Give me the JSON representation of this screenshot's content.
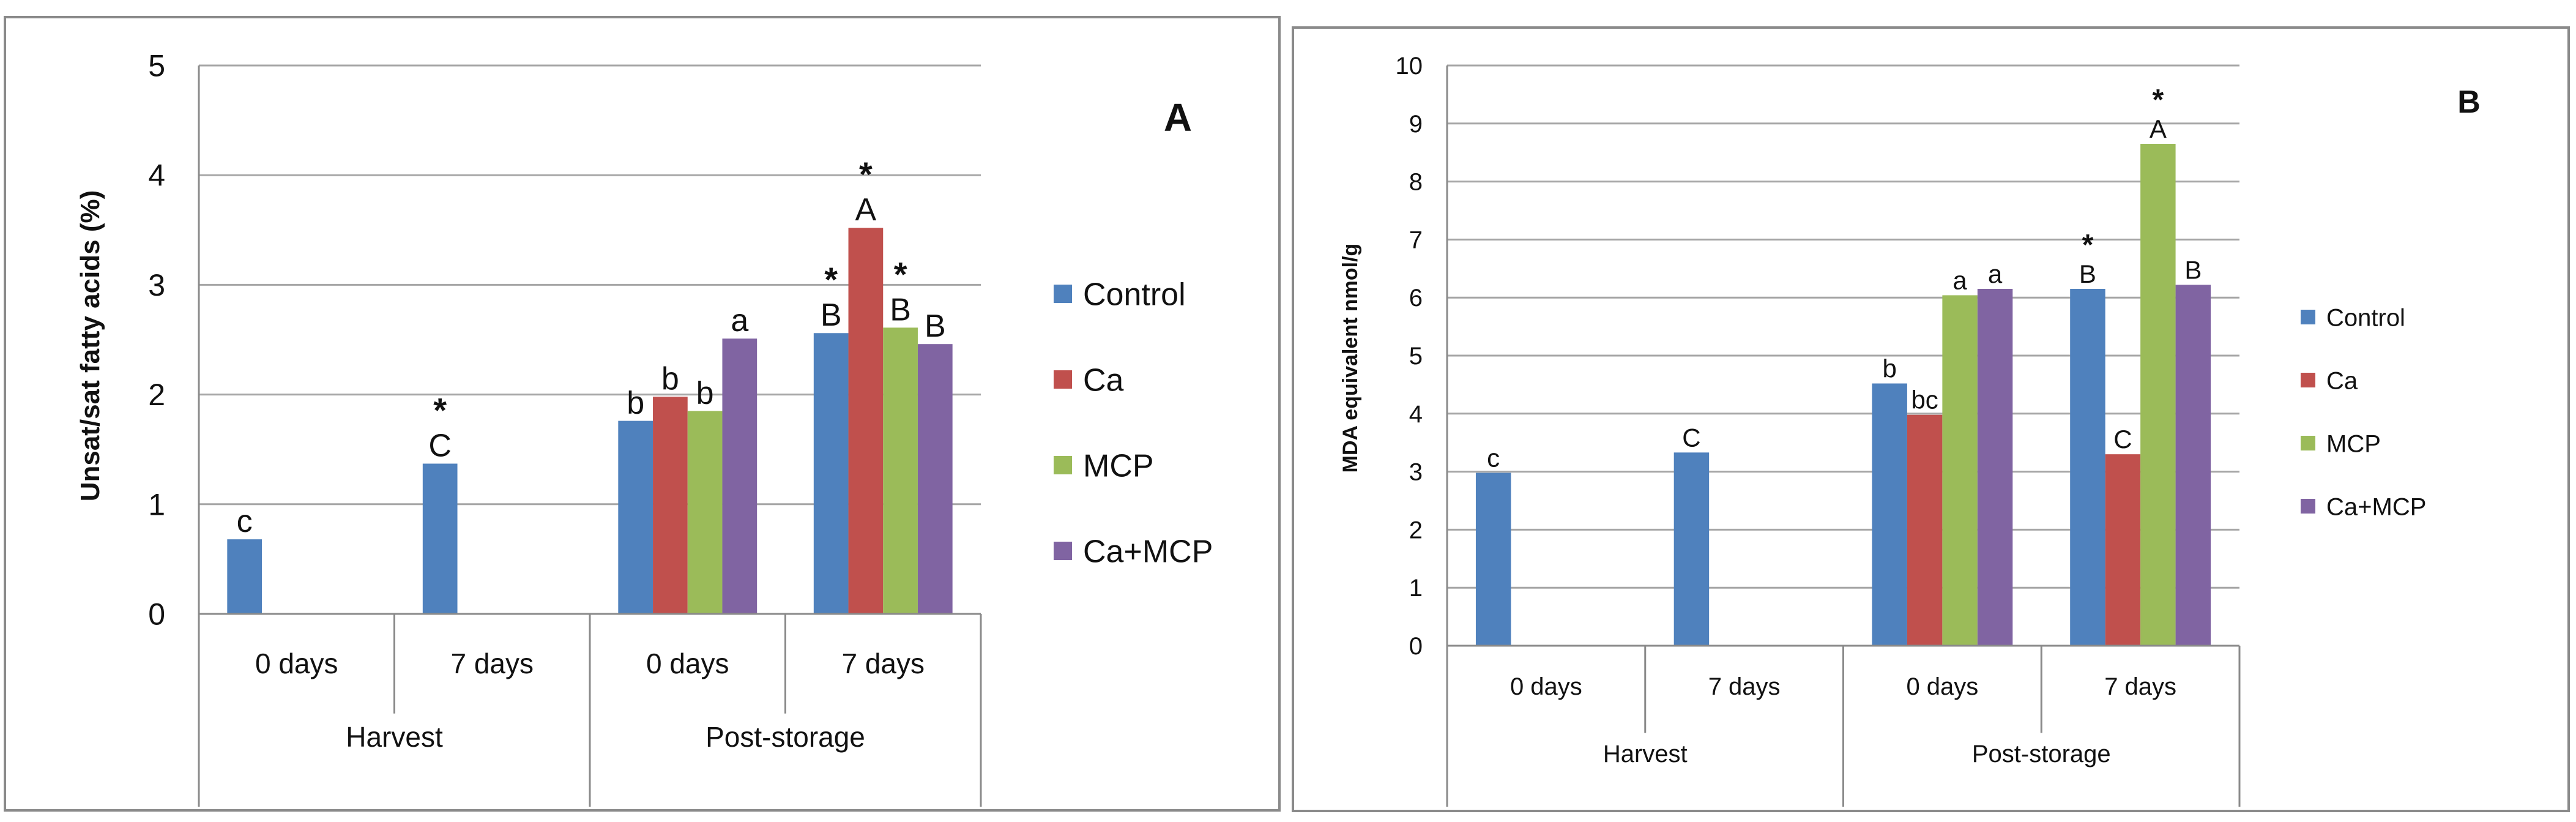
{
  "chart_data": [
    {
      "panel": "A",
      "type": "bar",
      "title": "",
      "panel_label": "A",
      "ylabel": "Unsat/sat fatty acids (%)",
      "xlabel": "",
      "ylim": [
        0,
        5
      ],
      "yticks": [
        0,
        1,
        2,
        3,
        4,
        5
      ],
      "grid": true,
      "legend_position": "right",
      "groups": [
        {
          "label": "Harvest",
          "categories": [
            "0 days",
            "7 days"
          ]
        },
        {
          "label": "Post-storage",
          "categories": [
            "0 days",
            "7 days"
          ]
        }
      ],
      "categories": [
        "0 days",
        "7 days",
        "0 days",
        "7 days"
      ],
      "series": [
        {
          "name": "Control",
          "color": "#4f81bd",
          "values": [
            0.68,
            1.37,
            1.76,
            2.56
          ],
          "labels": [
            "c",
            "C",
            "b",
            "B"
          ],
          "stars": [
            false,
            true,
            false,
            true
          ]
        },
        {
          "name": "Ca",
          "color": "#c0504d",
          "values": [
            null,
            null,
            1.98,
            3.52
          ],
          "labels": [
            "",
            "",
            "b",
            "A"
          ],
          "stars": [
            false,
            false,
            false,
            true
          ]
        },
        {
          "name": "MCP",
          "color": "#9bbb59",
          "values": [
            null,
            null,
            1.85,
            2.61
          ],
          "labels": [
            "",
            "",
            "b",
            "B"
          ],
          "stars": [
            false,
            false,
            false,
            true
          ]
        },
        {
          "name": "Ca+MCP",
          "color": "#8064a2",
          "values": [
            null,
            null,
            2.51,
            2.46
          ],
          "labels": [
            "",
            "",
            "a",
            "B"
          ],
          "stars": [
            false,
            false,
            false,
            false
          ]
        }
      ],
      "star_symbol": "*"
    },
    {
      "panel": "B",
      "type": "bar",
      "title": "",
      "panel_label": "B",
      "ylabel": "MDA equivalent nmol/g",
      "xlabel": "",
      "ylim": [
        0,
        10
      ],
      "yticks": [
        0,
        1,
        2,
        3,
        4,
        5,
        6,
        7,
        8,
        9,
        10
      ],
      "grid": true,
      "legend_position": "right",
      "groups": [
        {
          "label": "Harvest",
          "categories": [
            "0 days",
            "7 days"
          ]
        },
        {
          "label": "Post-storage",
          "categories": [
            "0 days",
            "7 days"
          ]
        }
      ],
      "categories": [
        "0 days",
        "7 days",
        "0 days",
        "7 days"
      ],
      "series": [
        {
          "name": "Control",
          "color": "#4f81bd",
          "values": [
            2.98,
            3.33,
            4.52,
            6.15
          ],
          "labels": [
            "c",
            "C",
            "b",
            "B"
          ],
          "stars": [
            false,
            false,
            false,
            true
          ]
        },
        {
          "name": "Ca",
          "color": "#c0504d",
          "values": [
            null,
            null,
            3.98,
            3.3
          ],
          "labels": [
            "",
            "",
            "bc",
            "C"
          ],
          "stars": [
            false,
            false,
            false,
            false
          ]
        },
        {
          "name": "MCP",
          "color": "#9bbb59",
          "values": [
            null,
            null,
            6.04,
            8.65
          ],
          "labels": [
            "",
            "",
            "a",
            "A"
          ],
          "stars": [
            false,
            false,
            false,
            true
          ]
        },
        {
          "name": "Ca+MCP",
          "color": "#8064a2",
          "values": [
            null,
            null,
            6.15,
            6.22
          ],
          "labels": [
            "",
            "",
            "a",
            "B"
          ],
          "stars": [
            false,
            false,
            false,
            false
          ]
        }
      ],
      "star_symbol": "*"
    }
  ]
}
